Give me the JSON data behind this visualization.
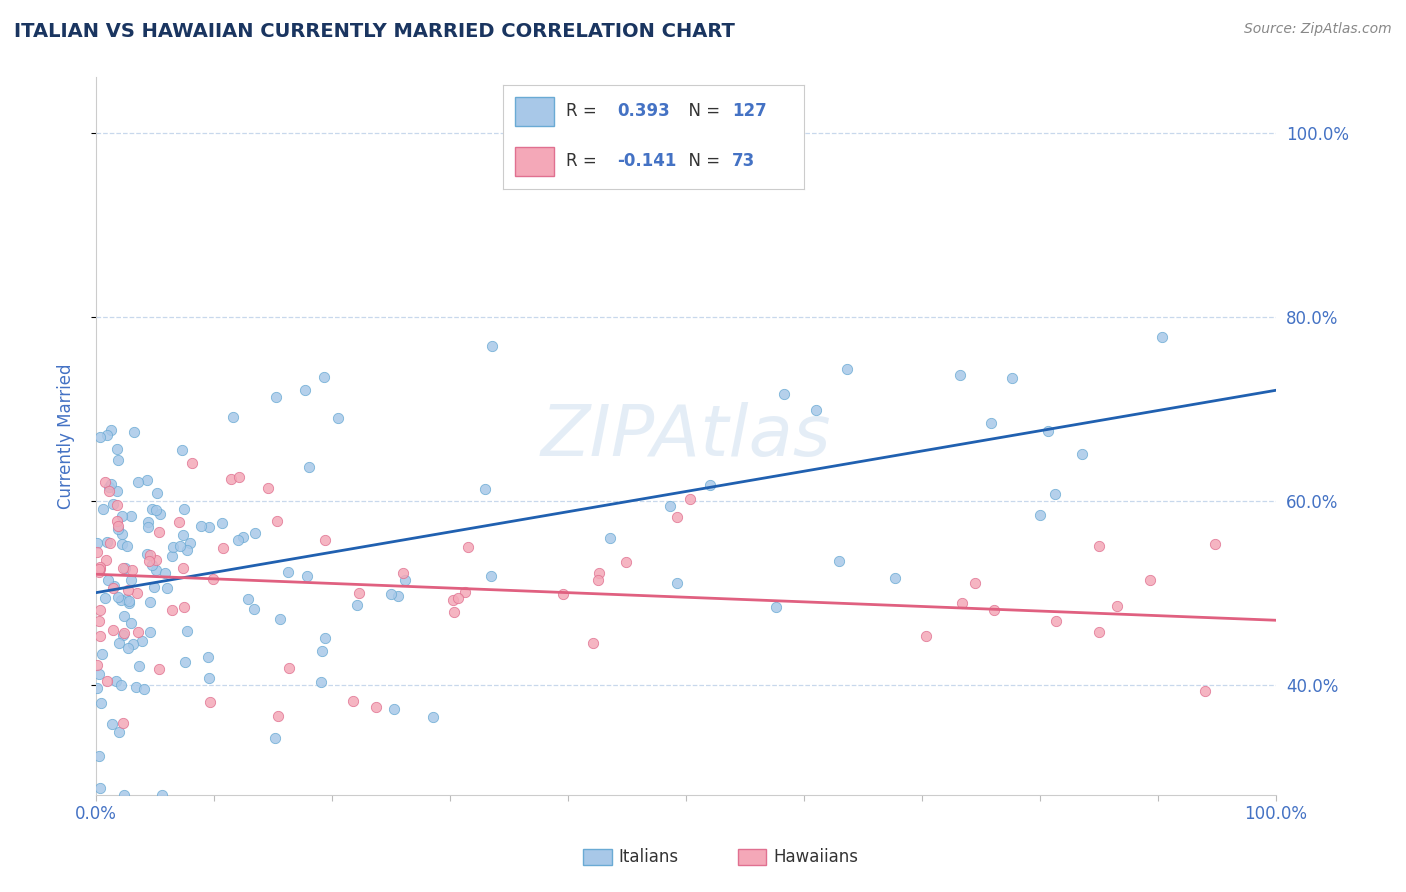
{
  "title": "ITALIAN VS HAWAIIAN CURRENTLY MARRIED CORRELATION CHART",
  "source": "Source: ZipAtlas.com",
  "ylabel": "Currently Married",
  "series": [
    {
      "name": "Italians",
      "scatter_color": "#a8c8e8",
      "scatter_edge": "#6aaad4",
      "R": 0.393,
      "N": 127,
      "line_color": "#2060b0",
      "line_style": "solid"
    },
    {
      "name": "Hawaiians",
      "scatter_color": "#f4a8b8",
      "scatter_edge": "#e07090",
      "R": -0.141,
      "N": 73,
      "line_color": "#e06080",
      "line_style": "solid"
    }
  ],
  "xlim": [
    0.0,
    1.0
  ],
  "ylim": [
    0.28,
    1.06
  ],
  "yticks": [
    0.4,
    0.6,
    0.8,
    1.0
  ],
  "ytick_labels": [
    "40.0%",
    "60.0%",
    "80.0%",
    "100.0%"
  ],
  "title_color": "#1a3560",
  "tick_color": "#4472c4",
  "grid_color": "#c8d8ec",
  "background_color": "#ffffff",
  "watermark": "ZIPAtlas",
  "legend_R_color": "#4472c4",
  "legend_N_color": "#333333"
}
